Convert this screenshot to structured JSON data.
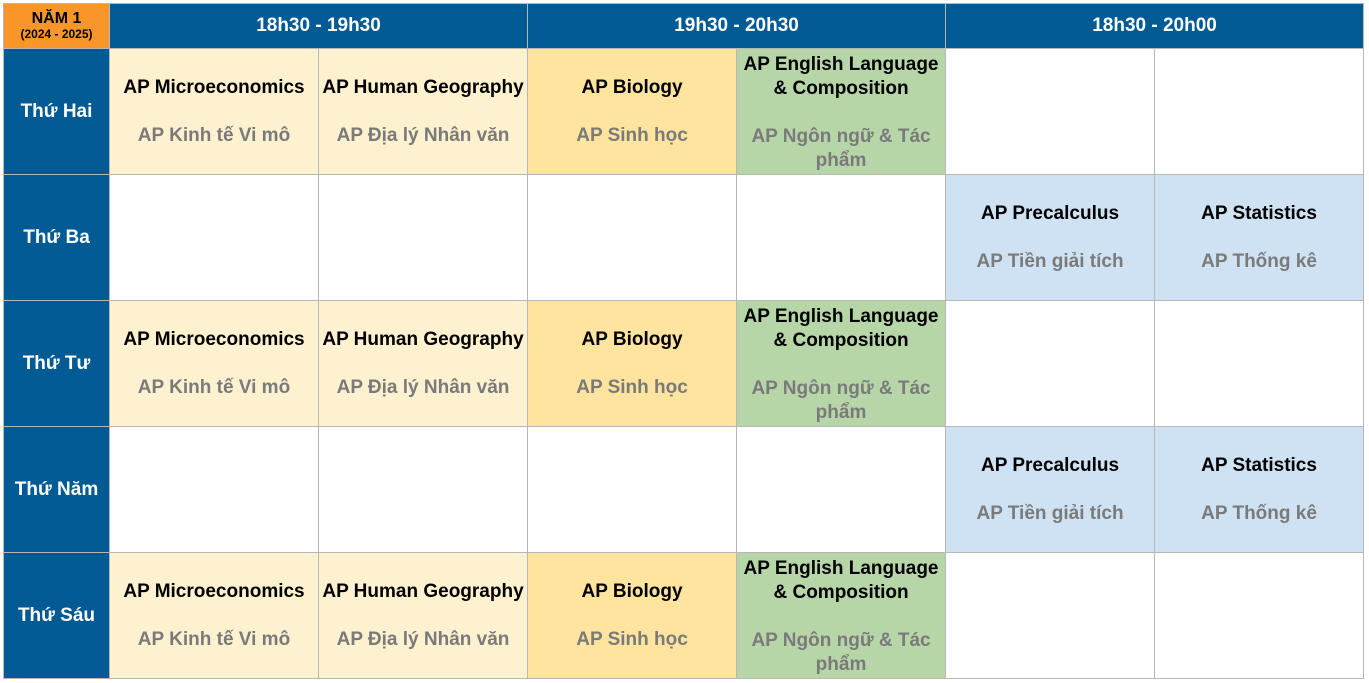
{
  "header": {
    "year_title": "NĂM 1",
    "year_range": "(2024 - 2025)",
    "slots": [
      "18h30 - 19h30",
      "19h30 - 20h30",
      "18h30 - 20h00"
    ]
  },
  "days": [
    "Thứ Hai",
    "Thứ Ba",
    "Thứ Tư",
    "Thứ Năm",
    "Thứ Sáu"
  ],
  "courses": {
    "micro": {
      "en": "AP Microeconomics",
      "vi": "AP Kinh tế Vi mô"
    },
    "geo": {
      "en": "AP Human Geography",
      "vi": "AP Địa lý Nhân văn"
    },
    "bio": {
      "en": "AP Biology",
      "vi": "AP Sinh học"
    },
    "eng": {
      "en": "AP English Language & Composition",
      "vi": "AP Ngôn ngữ & Tác phẩm"
    },
    "pre": {
      "en": "AP Precalculus",
      "vi": "AP Tiền giải tích"
    },
    "stat": {
      "en": "AP Statistics",
      "vi": "AP Thống kê"
    }
  },
  "colors": {
    "header_blue": "#005a94",
    "year_orange": "#f8962a",
    "micro_geo_cream": "#fef1cf",
    "bio_yellow": "#fee49f",
    "eng_green": "#b6d6a8",
    "math_blue": "#cfe2f3",
    "subtitle_gray": "#7a7a7a"
  }
}
